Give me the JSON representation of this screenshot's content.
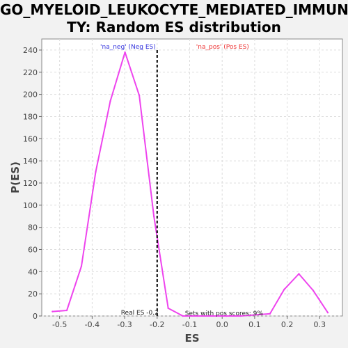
{
  "chart_data": {
    "type": "line",
    "title_line1": "GO_MYELOID_LEUKOCYTE_MEDIATED_IMMUNI",
    "title_line2": "TY: Random ES distribution",
    "xlabel": "ES",
    "ylabel": "P(ES)",
    "xlim": [
      -0.555,
      0.37
    ],
    "ylim": [
      0,
      250
    ],
    "xticks": [
      -0.5,
      -0.4,
      -0.3,
      -0.2,
      -0.1,
      0.0,
      0.1,
      0.2,
      0.3
    ],
    "xtick_labels": [
      "-0.5",
      "-0.4",
      "-0.3",
      "-0.2",
      "-0.1",
      "0.0",
      "0.1",
      "0.2",
      "0.3"
    ],
    "yticks": [
      0,
      20,
      40,
      60,
      80,
      100,
      120,
      140,
      160,
      180,
      200,
      220,
      240
    ],
    "grid": true,
    "series": [
      {
        "color": "#ee44ee",
        "x": [
          -0.522,
          -0.478,
          -0.433,
          -0.389,
          -0.344,
          -0.299,
          -0.255,
          -0.21,
          -0.166,
          -0.121,
          -0.077,
          -0.032,
          0.013,
          0.057,
          0.102,
          0.147,
          0.191,
          0.236,
          0.28,
          0.325
        ],
        "y": [
          4,
          5,
          45,
          130,
          194,
          238,
          199,
          90,
          7,
          0,
          0,
          0,
          0,
          0,
          1,
          2,
          24,
          38,
          23,
          3
        ]
      }
    ],
    "real_es": -0.2,
    "real_es_label": "Real ES -0.2",
    "pos_scores_label": "Sets with pos scores: 9%",
    "legend_neg": "'na_neg' (Neg ES)",
    "legend_pos": "'na_pos' (Pos ES)",
    "colors": {
      "line": "#ee44ee",
      "legend_neg": "#3333dd",
      "legend_pos": "#ee3333",
      "grid": "#dddddd",
      "real_es_line": "#000000"
    }
  }
}
